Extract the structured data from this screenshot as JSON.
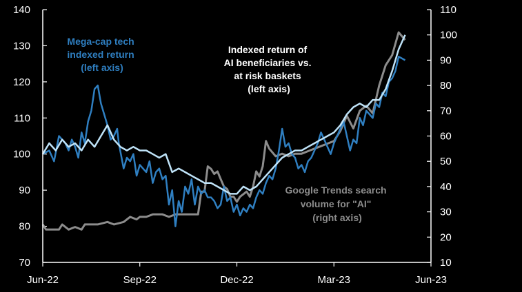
{
  "chart_data": {
    "type": "line",
    "title": "",
    "x_labels": [
      "Jun-22",
      "Sep-22",
      "Dec-22",
      "Mar-23",
      "Jun-23"
    ],
    "x_range": [
      0,
      12
    ],
    "ylim_left": [
      70,
      140
    ],
    "yticks_left": [
      70,
      80,
      90,
      100,
      110,
      120,
      130,
      140
    ],
    "ylim_right": [
      10,
      110
    ],
    "yticks_right": [
      10,
      20,
      30,
      40,
      50,
      60,
      70,
      80,
      90,
      100,
      110
    ],
    "colors": {
      "megacap": "#2f7fc1",
      "ai": "#bfe3f8",
      "trends": "#8c8c8c",
      "text": "#ffffff",
      "axis": "#ffffff"
    },
    "series": [
      {
        "name": "Mega-cap tech indexed return (left axis)",
        "axis": "left",
        "x": [
          0,
          0.2,
          0.35,
          0.5,
          0.7,
          0.8,
          0.9,
          1.0,
          1.1,
          1.2,
          1.3,
          1.4,
          1.5,
          1.6,
          1.7,
          1.8,
          1.9,
          2.0,
          2.1,
          2.2,
          2.3,
          2.35,
          2.5,
          2.6,
          2.7,
          2.8,
          2.9,
          3.0,
          3.1,
          3.2,
          3.3,
          3.4,
          3.5,
          3.6,
          3.7,
          3.8,
          3.9,
          4.0,
          4.1,
          4.2,
          4.3,
          4.4,
          4.5,
          4.6,
          4.7,
          4.8,
          4.9,
          5.0,
          5.1,
          5.2,
          5.3,
          5.4,
          5.5,
          5.6,
          5.7,
          5.8,
          5.9,
          6.0,
          6.1,
          6.2,
          6.3,
          6.4,
          6.5,
          6.6,
          6.7,
          6.8,
          6.9,
          7.0,
          7.1,
          7.2,
          7.3,
          7.4,
          7.5,
          7.6,
          7.7,
          7.8,
          7.9,
          8.0,
          8.1,
          8.2,
          8.3,
          8.4,
          8.5,
          8.6,
          8.7,
          8.8,
          8.9,
          9.0,
          9.1,
          9.2,
          9.3,
          9.4,
          9.5,
          9.6,
          9.7,
          9.8,
          9.9,
          10.0,
          10.1,
          10.2,
          10.3,
          10.4,
          10.5,
          10.6,
          10.7,
          10.8,
          10.9,
          11.0,
          11.2
        ],
        "values": [
          100,
          101,
          98,
          105,
          103,
          101,
          104,
          102,
          99,
          106,
          103,
          109,
          112,
          118,
          119,
          114,
          111,
          108,
          104,
          105,
          107,
          103,
          96,
          99,
          98,
          100,
          94,
          97,
          96,
          95,
          98,
          92,
          95,
          96,
          93,
          94,
          86,
          90,
          80,
          87,
          84,
          91,
          89,
          93,
          86,
          91,
          89,
          90,
          88,
          88,
          87,
          85,
          86,
          91,
          87,
          88,
          84,
          86,
          83,
          85,
          84,
          86,
          85,
          88,
          90,
          89,
          92,
          94,
          93,
          96,
          101,
          107,
          102,
          103,
          100,
          99,
          96,
          97,
          95,
          98,
          99,
          101,
          103,
          106,
          104,
          102,
          100,
          103,
          105,
          107,
          109,
          105,
          101,
          104,
          103,
          110,
          108,
          112,
          111,
          110,
          114,
          113,
          117,
          116,
          120,
          121,
          123,
          127,
          126
        ]
      },
      {
        "name": "Indexed return of AI beneficiaries vs. at risk baskets (left axis)",
        "axis": "left",
        "x": [
          0,
          0.2,
          0.4,
          0.6,
          0.8,
          1.0,
          1.2,
          1.4,
          1.6,
          1.8,
          2.0,
          2.2,
          2.4,
          2.6,
          2.8,
          3.0,
          3.2,
          3.4,
          3.6,
          3.8,
          4.0,
          4.2,
          4.4,
          4.6,
          4.8,
          5.0,
          5.2,
          5.4,
          5.6,
          5.8,
          6.0,
          6.2,
          6.4,
          6.6,
          6.8,
          7.0,
          7.2,
          7.4,
          7.6,
          7.8,
          8.0,
          8.2,
          8.4,
          8.6,
          8.8,
          9.0,
          9.2,
          9.4,
          9.6,
          9.8,
          10.0,
          10.2,
          10.4,
          10.6,
          10.8,
          11.0,
          11.2
        ],
        "values": [
          100,
          103,
          101,
          104,
          102,
          103,
          101,
          104,
          102,
          105,
          108,
          104,
          102,
          101,
          102,
          101,
          101,
          100,
          99,
          100,
          95,
          96,
          95,
          94,
          93,
          92,
          92,
          91,
          90,
          89,
          89,
          91,
          90,
          91,
          93,
          95,
          97,
          99,
          100,
          101,
          101,
          102,
          103,
          104,
          105,
          106,
          108,
          111,
          113,
          114,
          113,
          115,
          115,
          118,
          123,
          129,
          133
        ]
      },
      {
        "name": "Google Trends search volume for \"AI\" (right axis)",
        "axis": "right",
        "x": [
          0,
          0.1,
          0.5,
          0.6,
          0.8,
          1.0,
          1.2,
          1.3,
          1.5,
          1.7,
          2.0,
          2.2,
          2.5,
          2.7,
          2.9,
          3.0,
          3.2,
          3.4,
          3.5,
          3.7,
          3.9,
          4.1,
          4.3,
          4.5,
          4.6,
          4.7,
          4.8,
          4.9,
          5.0,
          5.1,
          5.2,
          5.3,
          5.4,
          5.5,
          5.6,
          5.7,
          5.8,
          5.9,
          6.0,
          6.1,
          6.2,
          6.3,
          6.4,
          6.5,
          6.6,
          6.7,
          6.8,
          6.9,
          7.0,
          7.2,
          7.4,
          7.6,
          7.8,
          8.0,
          8.2,
          8.4,
          8.6,
          8.8,
          9.0,
          9.2,
          9.4,
          9.6,
          9.8,
          10.0,
          10.2,
          10.4,
          10.6,
          10.8,
          11.0,
          11.2
        ],
        "values": [
          25,
          23,
          23,
          25,
          23,
          24,
          23,
          25,
          25,
          25,
          26,
          25,
          26,
          28,
          27,
          28,
          28,
          29,
          29,
          29,
          28,
          29,
          29,
          29,
          29,
          29,
          29,
          38,
          38,
          48,
          47,
          45,
          46,
          43,
          40,
          39,
          36,
          36,
          34,
          36,
          37,
          38,
          36,
          40,
          46,
          44,
          48,
          58,
          55,
          52,
          53,
          52,
          53,
          53,
          54,
          55,
          56,
          57,
          58,
          62,
          68,
          63,
          70,
          72,
          69,
          80,
          88,
          92,
          101,
          98
        ]
      }
    ],
    "annotations": [
      {
        "lines": [
          "Mega-cap tech",
          "indexed return",
          "(left axis)"
        ],
        "color": "megacap"
      },
      {
        "lines": [
          "Indexed return of",
          "AI  beneficiaries vs.",
          "at risk baskets",
          "(left axis)"
        ],
        "color": "text"
      },
      {
        "lines": [
          "Google Trends search",
          "volume for \"AI\"",
          "(right axis)"
        ],
        "color": "trends"
      }
    ]
  }
}
